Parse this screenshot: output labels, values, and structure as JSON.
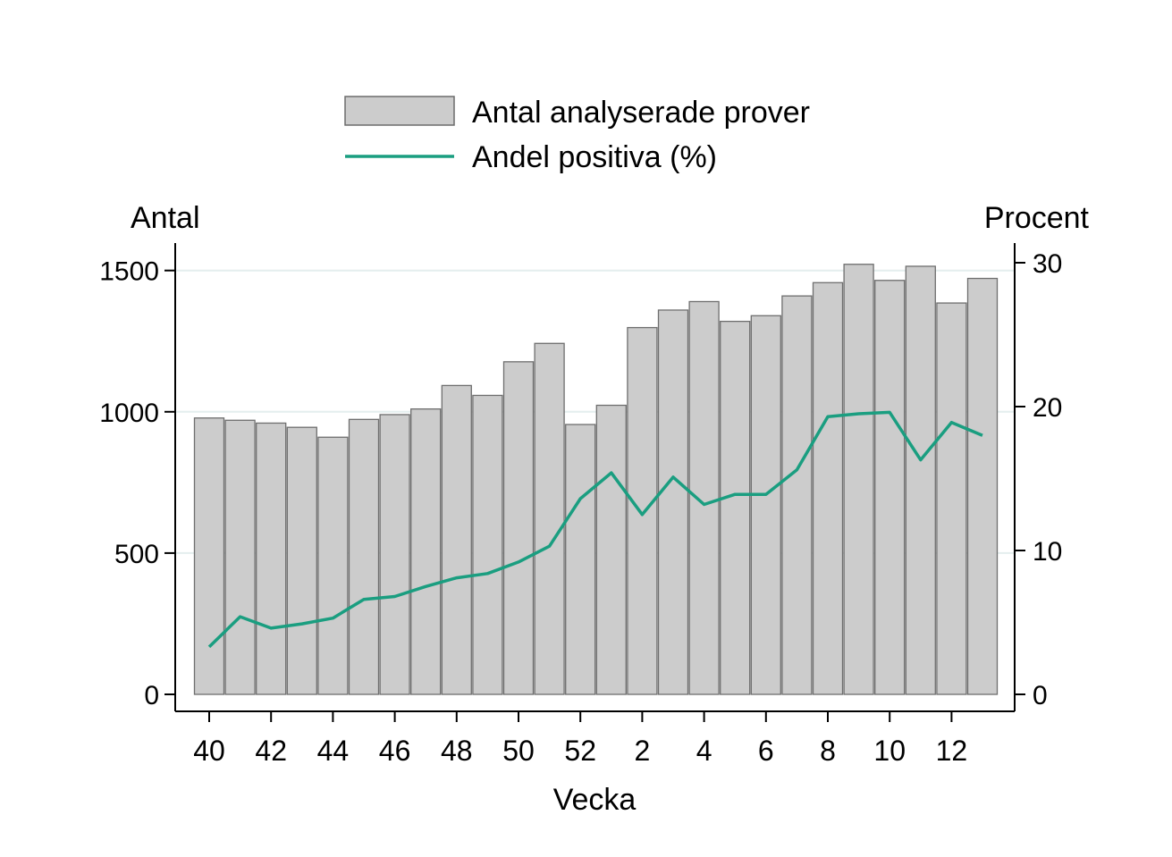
{
  "chart_data": {
    "type": "bar+line",
    "title": "",
    "xlabel": "Vecka",
    "y_left_label": "Antal",
    "y_right_label": "Procent",
    "y_left_lim": [
      0,
      1600
    ],
    "y_right_lim": [
      0,
      31.2
    ],
    "y_left_ticks": [
      "0",
      "500",
      "1000",
      "1500"
    ],
    "y_right_ticks": [
      "0",
      "10",
      "20",
      "30"
    ],
    "x_tick_labels": [
      "40",
      "42",
      "44",
      "46",
      "48",
      "50",
      "52",
      "2",
      "4",
      "6",
      "8",
      "10",
      "12"
    ],
    "categories": [
      "40",
      "41",
      "42",
      "43",
      "44",
      "45",
      "46",
      "47",
      "48",
      "49",
      "50",
      "51",
      "52",
      "53",
      "1",
      "2",
      "3",
      "4",
      "5",
      "6",
      "7",
      "8",
      "9",
      "10",
      "11",
      "12",
      "13"
    ],
    "series": [
      {
        "name": "Antal analyserade prover",
        "type": "bar",
        "axis": "left",
        "color": "#cccccc",
        "values": [
          978,
          970,
          960,
          945,
          910,
          973,
          990,
          1010,
          1093,
          1058,
          1177,
          1242,
          955,
          1023,
          1298,
          1360,
          1390,
          1320,
          1340,
          1410,
          1457,
          1522,
          1465,
          1515,
          1385,
          1472,
          1472
        ]
      },
      {
        "name": "Andel positiva (%)",
        "type": "line",
        "axis": "right",
        "color": "#1a9e80",
        "values": [
          3.3,
          5.4,
          4.6,
          4.9,
          5.3,
          6.6,
          6.8,
          7.5,
          8.1,
          8.4,
          9.2,
          10.3,
          13.6,
          15.4,
          12.5,
          15.1,
          13.2,
          13.9,
          13.9,
          15.6,
          19.3,
          19.5,
          19.6,
          16.3,
          18.9,
          18.0,
          18.0
        ]
      }
    ],
    "legend": {
      "position": "top",
      "items": [
        "Antal analyserade prover",
        "Andel positiva (%)"
      ]
    },
    "grid": "horizontal"
  }
}
